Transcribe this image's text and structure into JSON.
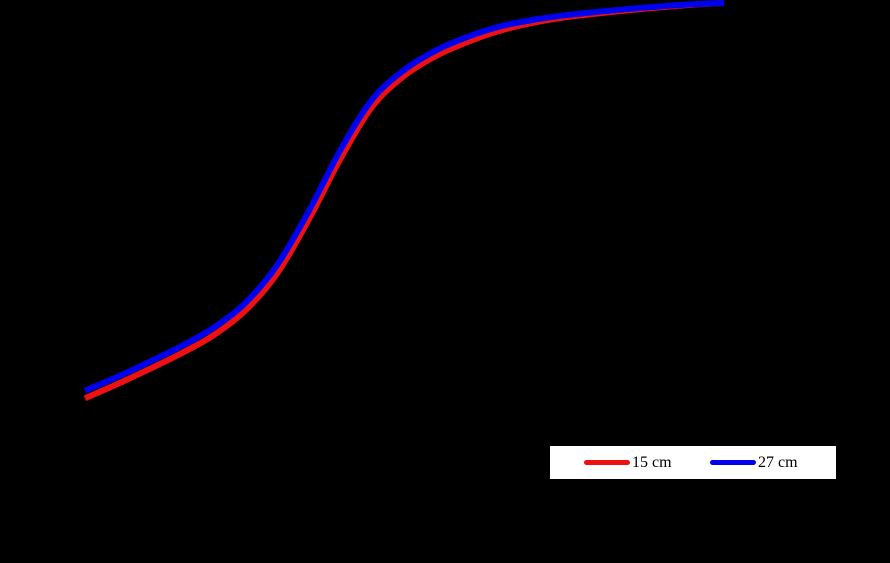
{
  "chart_data": {
    "type": "line",
    "title": "",
    "xlabel": "",
    "ylabel": "",
    "grid": false,
    "legend_position": "bottom-right",
    "background_color": "#000000",
    "x": [
      0,
      0.05,
      0.1,
      0.15,
      0.2,
      0.25,
      0.3,
      0.35,
      0.4,
      0.45,
      0.5,
      0.55,
      0.6,
      0.65,
      0.7,
      0.75,
      0.8,
      0.85,
      0.9,
      0.95,
      1.0
    ],
    "xlim": [
      0,
      1
    ],
    "ylim": [
      0,
      1
    ],
    "series": [
      {
        "name": "15 cm",
        "color": "#ee1111",
        "values": [
          0.07,
          0.103,
          0.138,
          0.175,
          0.217,
          0.275,
          0.362,
          0.49,
          0.634,
          0.757,
          0.829,
          0.876,
          0.909,
          0.935,
          0.953,
          0.966,
          0.975,
          0.983,
          0.99,
          0.996,
          1.0
        ]
      },
      {
        "name": "27 cm",
        "color": "#0000ee",
        "values": [
          0.088,
          0.12,
          0.155,
          0.192,
          0.235,
          0.293,
          0.382,
          0.51,
          0.655,
          0.774,
          0.843,
          0.889,
          0.921,
          0.945,
          0.96,
          0.971,
          0.979,
          0.986,
          0.992,
          0.997,
          1.0
        ]
      }
    ]
  }
}
